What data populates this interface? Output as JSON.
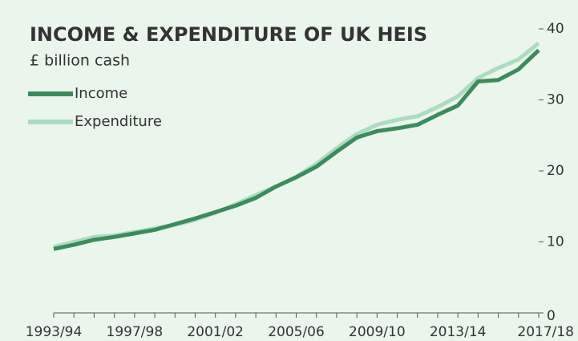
{
  "chart_data": {
    "type": "line",
    "title": "INCOME & EXPENDITURE OF UK HEIS",
    "subtitle": "£ billion cash",
    "categories": [
      "1993/94",
      null,
      null,
      null,
      "1997/98",
      null,
      null,
      null,
      "2001/02",
      null,
      null,
      null,
      "2005/06",
      null,
      null,
      null,
      "2009/10",
      null,
      null,
      null,
      "2013/14",
      null,
      null,
      null,
      "2017/18"
    ],
    "series": [
      {
        "name": "Income",
        "color": "#3b8b5d",
        "values": [
          9.0,
          9.6,
          10.3,
          10.7,
          11.2,
          11.7,
          12.5,
          13.3,
          14.2,
          15.1,
          16.2,
          17.8,
          19.1,
          20.6,
          22.7,
          24.7,
          25.6,
          26.0,
          26.5,
          27.9,
          29.2,
          32.6,
          32.8,
          34.3,
          37.0
        ]
      },
      {
        "name": "Expenditure",
        "color": "#acdcc0",
        "values": [
          9.3,
          10.0,
          10.7,
          10.9,
          11.4,
          11.9,
          12.4,
          13.1,
          14.1,
          15.3,
          16.6,
          17.8,
          19.2,
          21.0,
          23.2,
          25.2,
          26.5,
          27.2,
          27.7,
          29.0,
          30.5,
          33.1,
          34.5,
          35.7,
          38.0
        ]
      }
    ],
    "ylim": [
      0,
      40
    ],
    "yticks": [
      0,
      10,
      20,
      30,
      40
    ],
    "y_axis_side": "right",
    "legend": "upper left"
  }
}
